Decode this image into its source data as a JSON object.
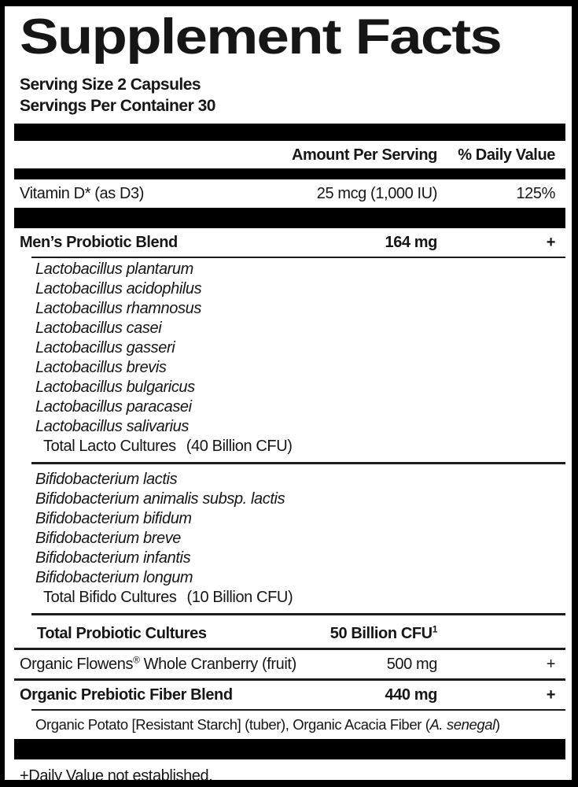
{
  "title": "Supplement Facts",
  "serving": {
    "size": "Serving Size 2 Capsules",
    "per_container": "Servings Per Container 30"
  },
  "headers": {
    "amount": "Amount Per Serving",
    "daily_value": "% Daily Value"
  },
  "vitamin_d": {
    "name": "Vitamin D* (as D3)",
    "amount": "25 mcg (1,000 IU)",
    "daily_value": "125%"
  },
  "mens_blend": {
    "name": "Men’s Probiotic Blend",
    "amount": "164 mg",
    "daily_value": "+",
    "lacto_species": [
      "Lactobacillus plantarum",
      "Lactobacillus acidophilus",
      "Lactobacillus rhamnosus",
      "Lactobacillus casei",
      "Lactobacillus gasseri",
      "Lactobacillus brevis",
      "Lactobacillus bulgaricus",
      "Lactobacillus paracasei",
      "Lactobacillus salivarius"
    ],
    "lacto_total": {
      "name": "Total Lacto Cultures",
      "value": "(40 Billion CFU)"
    },
    "bifido_species": [
      "Bifidobacterium lactis",
      "Bifidobacterium animalis subsp. lactis",
      "Bifidobacterium bifidum",
      "Bifidobacterium breve",
      "Bifidobacterium infantis",
      "Bifidobacterium longum"
    ],
    "bifido_total": {
      "name": "Total Bifido Cultures",
      "value": "(10 Billion CFU)"
    }
  },
  "total_probiotic": {
    "name": "Total Probiotic Cultures",
    "amount": "50 Billion CFU",
    "amount_superscript": "1"
  },
  "cranberry": {
    "name_prefix": "Organic Flowens",
    "reg_mark": "®",
    "name_suffix": " Whole Cranberry (fruit)",
    "amount": "500 mg",
    "daily_value": "+"
  },
  "fiber_blend": {
    "name": "Organic Prebiotic Fiber Blend",
    "amount": "440 mg",
    "daily_value": "+",
    "ingredients_prefix": "Organic Potato [Resistant Starch] (tuber), Organic Acacia Fiber (",
    "ingredients_species": "A. senegal",
    "ingredients_suffix": ")"
  },
  "footnote": "+Daily Value not established.",
  "colors": {
    "ink": "#161616",
    "bar": "#000000",
    "background": "#ffffff"
  }
}
